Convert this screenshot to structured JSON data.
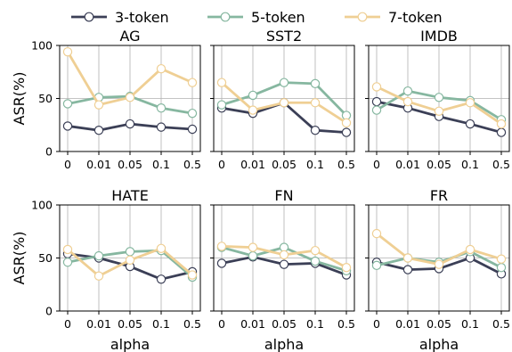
{
  "legend": {
    "entries": [
      {
        "label": "3-token",
        "color": "#3b3f56"
      },
      {
        "label": "5-token",
        "color": "#86b7a0"
      },
      {
        "label": "7-token",
        "color": "#efcf94"
      }
    ]
  },
  "chart_data": [
    {
      "type": "line",
      "title": "AG",
      "xlabel": "",
      "ylabel": "ASR(%)",
      "categories": [
        "0",
        "0.01",
        "0.05",
        "0.1",
        "0.5"
      ],
      "yticks": [
        "0",
        "50",
        "100"
      ],
      "ylim": [
        0,
        100
      ],
      "grid": true,
      "series": [
        {
          "name": "3-token",
          "color": "#3b3f56",
          "values": [
            24,
            20,
            26,
            23,
            21
          ]
        },
        {
          "name": "5-token",
          "color": "#86b7a0",
          "values": [
            45,
            51,
            52,
            41,
            36
          ]
        },
        {
          "name": "7-token",
          "color": "#efcf94",
          "values": [
            94,
            44,
            51,
            78,
            65
          ]
        }
      ]
    },
    {
      "type": "line",
      "title": "SST2",
      "xlabel": "",
      "ylabel": "",
      "categories": [
        "0",
        "0.01",
        "0.05",
        "0.1",
        "0.5"
      ],
      "yticks": [
        "0",
        "50",
        "100"
      ],
      "ylim": [
        0,
        100
      ],
      "grid": true,
      "series": [
        {
          "name": "3-token",
          "color": "#3b3f56",
          "values": [
            41,
            36,
            46,
            20,
            18
          ]
        },
        {
          "name": "5-token",
          "color": "#86b7a0",
          "values": [
            44,
            53,
            65,
            64,
            34
          ]
        },
        {
          "name": "7-token",
          "color": "#efcf94",
          "values": [
            65,
            39,
            46,
            46,
            27
          ]
        }
      ]
    },
    {
      "type": "line",
      "title": "IMDB",
      "xlabel": "",
      "ylabel": "",
      "categories": [
        "0",
        "0.01",
        "0.05",
        "0.1",
        "0.5"
      ],
      "yticks": [
        "0",
        "50",
        "100"
      ],
      "ylim": [
        0,
        100
      ],
      "grid": true,
      "series": [
        {
          "name": "3-token",
          "color": "#3b3f56",
          "values": [
            47,
            41,
            33,
            26,
            18
          ]
        },
        {
          "name": "5-token",
          "color": "#86b7a0",
          "values": [
            39,
            57,
            51,
            48,
            30
          ]
        },
        {
          "name": "7-token",
          "color": "#efcf94",
          "values": [
            61,
            47,
            38,
            46,
            26
          ]
        }
      ]
    },
    {
      "type": "line",
      "title": "HATE",
      "xlabel": "alpha",
      "ylabel": "ASR(%)",
      "categories": [
        "0",
        "0.01",
        "0.05",
        "0.1",
        "0.5"
      ],
      "yticks": [
        "0",
        "50",
        "100"
      ],
      "ylim": [
        0,
        100
      ],
      "grid": true,
      "series": [
        {
          "name": "3-token",
          "color": "#3b3f56",
          "values": [
            54,
            50,
            42,
            30,
            37
          ]
        },
        {
          "name": "5-token",
          "color": "#86b7a0",
          "values": [
            46,
            52,
            56,
            57,
            32
          ]
        },
        {
          "name": "7-token",
          "color": "#efcf94",
          "values": [
            58,
            33,
            48,
            59,
            34
          ]
        }
      ]
    },
    {
      "type": "line",
      "title": "FN",
      "xlabel": "alpha",
      "ylabel": "",
      "categories": [
        "0",
        "0.01",
        "0.05",
        "0.1",
        "0.5"
      ],
      "yticks": [
        "0",
        "50",
        "100"
      ],
      "ylim": [
        0,
        100
      ],
      "grid": true,
      "series": [
        {
          "name": "3-token",
          "color": "#3b3f56",
          "values": [
            45,
            51,
            44,
            45,
            34
          ]
        },
        {
          "name": "5-token",
          "color": "#86b7a0",
          "values": [
            60,
            52,
            60,
            47,
            38
          ]
        },
        {
          "name": "7-token",
          "color": "#efcf94",
          "values": [
            61,
            60,
            53,
            57,
            41
          ]
        }
      ]
    },
    {
      "type": "line",
      "title": "FR",
      "xlabel": "alpha",
      "ylabel": "",
      "categories": [
        "0",
        "0.01",
        "0.05",
        "0.1",
        "0.5"
      ],
      "yticks": [
        "0",
        "50",
        "100"
      ],
      "ylim": [
        0,
        100
      ],
      "grid": true,
      "series": [
        {
          "name": "3-token",
          "color": "#3b3f56",
          "values": [
            46,
            39,
            40,
            50,
            35
          ]
        },
        {
          "name": "5-token",
          "color": "#86b7a0",
          "values": [
            43,
            50,
            46,
            56,
            41
          ]
        },
        {
          "name": "7-token",
          "color": "#efcf94",
          "values": [
            73,
            50,
            44,
            58,
            49
          ]
        }
      ]
    }
  ]
}
